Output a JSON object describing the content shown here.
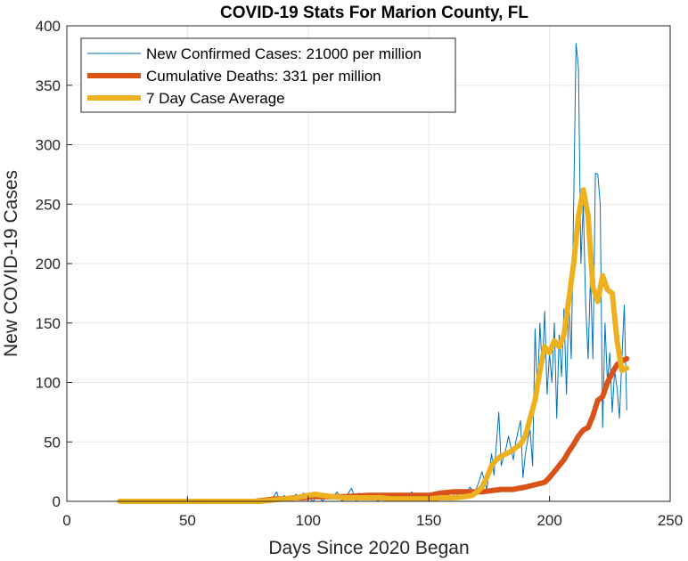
{
  "chart_data": {
    "type": "line",
    "title": "COVID-19 Stats For Marion County, FL",
    "xlabel": "Days Since 2020 Began",
    "ylabel": "New COVID-19 Cases",
    "xlim": [
      0,
      250
    ],
    "ylim": [
      0,
      400
    ],
    "xticks": [
      "0",
      "50",
      "100",
      "150",
      "200",
      "250"
    ],
    "yticks": [
      "0",
      "50",
      "100",
      "150",
      "200",
      "250",
      "300",
      "350",
      "400"
    ],
    "grid": true,
    "legend_position": "top-left",
    "series": [
      {
        "name": "New Confirmed Cases: 21000 per million",
        "color": "#0072BD",
        "style": "thin",
        "x": [
          22,
          40,
          60,
          80,
          85,
          87,
          88,
          90,
          92,
          95,
          97,
          98,
          100,
          102,
          104,
          106,
          108,
          110,
          112,
          114,
          116,
          118,
          120,
          121,
          123,
          125,
          127,
          129,
          131,
          133,
          135,
          137,
          139,
          141,
          143,
          145,
          147,
          149,
          151,
          153,
          155,
          157,
          159,
          161,
          163,
          165,
          167,
          169,
          171,
          172,
          174,
          176,
          177,
          179,
          180,
          182,
          183,
          185,
          186,
          188,
          189,
          190,
          191,
          192,
          193,
          194,
          195,
          196,
          197,
          198,
          199,
          200,
          201,
          202,
          203,
          204,
          205,
          206,
          207,
          208,
          209,
          210,
          211,
          212,
          213,
          214,
          215,
          216,
          217,
          218,
          219,
          220,
          221,
          222,
          223,
          224,
          225,
          226,
          227,
          228,
          229,
          230,
          231,
          232
        ],
        "y": [
          0,
          0,
          0,
          0,
          2,
          8,
          0,
          5,
          0,
          6,
          2,
          7,
          4,
          0,
          5,
          0,
          6,
          3,
          8,
          0,
          5,
          11,
          0,
          7,
          2,
          6,
          4,
          0,
          5,
          3,
          0,
          4,
          6,
          2,
          8,
          0,
          4,
          2,
          5,
          0,
          6,
          3,
          8,
          4,
          10,
          3,
          12,
          7,
          18,
          25,
          10,
          40,
          22,
          75,
          30,
          45,
          55,
          35,
          50,
          68,
          20,
          40,
          52,
          60,
          30,
          145,
          90,
          150,
          110,
          160,
          90,
          125,
          100,
          150,
          70,
          140,
          105,
          162,
          90,
          170,
          120,
          250,
          385,
          365,
          200,
          250,
          165,
          120,
          190,
          120,
          276,
          275,
          250,
          62,
          150,
          100,
          125,
          75,
          110,
          95,
          70,
          120,
          165,
          77
        ]
      },
      {
        "name": "Cumulative Deaths: 331 per million",
        "color": "#D95319",
        "style": "thick",
        "x": [
          22,
          60,
          78,
          82,
          86,
          90,
          94,
          98,
          102,
          108,
          115,
          125,
          135,
          145,
          150,
          155,
          160,
          165,
          168,
          172,
          176,
          180,
          185,
          190,
          194,
          198,
          200,
          202,
          204,
          206,
          208,
          210,
          212,
          214,
          216,
          218,
          220,
          222,
          224,
          226,
          228,
          230,
          232
        ],
        "y": [
          0,
          0,
          0,
          1,
          2,
          2,
          3,
          3,
          4,
          4,
          4,
          5,
          5,
          5,
          5,
          7,
          8,
          8,
          8,
          8,
          9,
          10,
          10,
          12,
          14,
          16,
          20,
          25,
          30,
          35,
          42,
          48,
          55,
          60,
          62,
          72,
          85,
          88,
          100,
          108,
          115,
          118,
          120
        ]
      },
      {
        "name": "7 Day Case Average",
        "color": "#EDB120",
        "style": "thick",
        "x": [
          22,
          60,
          80,
          85,
          90,
          95,
          100,
          103,
          106,
          110,
          115,
          120,
          125,
          130,
          135,
          140,
          145,
          150,
          155,
          160,
          165,
          168,
          170,
          172,
          174,
          176,
          178,
          180,
          182,
          184,
          186,
          188,
          190,
          192,
          194,
          196,
          198,
          200,
          202,
          204,
          206,
          208,
          210,
          212,
          214,
          216,
          218,
          220,
          222,
          224,
          226,
          228,
          230,
          232
        ],
        "y": [
          0,
          0,
          0,
          1,
          2,
          3,
          5,
          6,
          5,
          4,
          3,
          3,
          3,
          3,
          2,
          2,
          2,
          2,
          3,
          3,
          4,
          5,
          8,
          12,
          20,
          30,
          35,
          38,
          40,
          42,
          45,
          48,
          55,
          70,
          85,
          110,
          130,
          125,
          135,
          130,
          140,
          170,
          200,
          240,
          262,
          240,
          180,
          168,
          190,
          178,
          175,
          135,
          110,
          112
        ]
      }
    ]
  }
}
